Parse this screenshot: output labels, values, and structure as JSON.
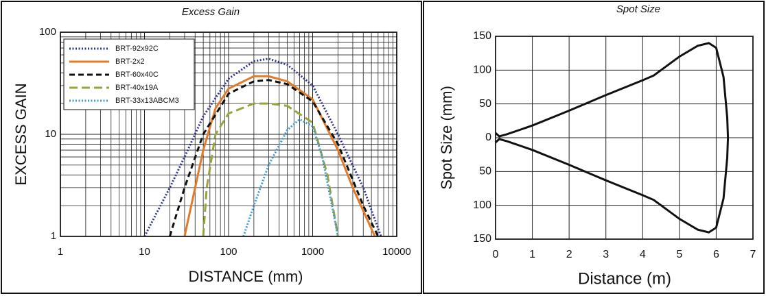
{
  "chart_data": [
    {
      "type": "line",
      "title": "Excess Gain",
      "x_label": "DISTANCE (mm)",
      "y_label": "EXCESS GAIN",
      "xlog": true,
      "ylog": true,
      "grid": true,
      "minor_grid": true,
      "legend": "upper-left",
      "xlim": [
        1,
        10000
      ],
      "xticks": [
        1,
        10,
        100,
        1000,
        10000
      ],
      "ylim": [
        1,
        100
      ],
      "yticks": [
        1,
        10,
        100
      ],
      "series": [
        {
          "name": "BRT-92x92C",
          "color": "#2e3192",
          "dash": "dotted",
          "x": [
            10,
            20,
            30,
            50,
            100,
            200,
            300,
            500,
            1000,
            2000,
            4000,
            6500
          ],
          "values": [
            1,
            3,
            6,
            15,
            35,
            52,
            55,
            48,
            30,
            10,
            3,
            1
          ]
        },
        {
          "name": "BRT-2x2",
          "color": "#e07b2a",
          "dash": "solid",
          "x": [
            30,
            40,
            50,
            70,
            100,
            200,
            300,
            500,
            1000,
            2000,
            3000,
            5500
          ],
          "values": [
            1,
            3,
            7,
            18,
            28,
            37,
            37,
            33,
            22,
            7,
            3,
            1
          ]
        },
        {
          "name": "BRT-60x40C",
          "color": "#111111",
          "dash": "dashed",
          "x": [
            20,
            30,
            50,
            100,
            200,
            300,
            500,
            1000,
            2000,
            4000,
            6000
          ],
          "values": [
            1,
            3,
            10,
            25,
            33,
            34,
            31,
            21,
            8,
            2,
            1
          ]
        },
        {
          "name": "BRT-40x19A",
          "color": "#9aa23a",
          "dash": "long-dashed",
          "x": [
            50,
            55,
            70,
            100,
            200,
            300,
            500,
            1000,
            1500,
            2000
          ],
          "values": [
            1,
            3,
            10,
            16,
            20,
            20,
            19,
            13,
            4,
            1
          ]
        },
        {
          "name": "BRT-33x13ABCM3",
          "color": "#3a9bd9",
          "dash": "dotted",
          "x": [
            150,
            200,
            300,
            500,
            700,
            1000,
            1300,
            1700,
            2000
          ],
          "values": [
            1,
            2,
            5,
            11,
            14,
            12,
            6,
            2,
            1
          ]
        }
      ]
    },
    {
      "type": "line",
      "title": "Spot Size",
      "x_label": "Distance (m)",
      "y_label": "Spot Size (mm)",
      "xlog": false,
      "ylog": false,
      "grid": true,
      "xlim": [
        0,
        7
      ],
      "xticks": [
        0,
        1,
        2,
        3,
        4,
        5,
        6,
        7
      ],
      "ylim": [
        -150,
        150
      ],
      "yticks": [
        {
          "value": -150,
          "label": "150"
        },
        {
          "value": -100,
          "label": "100"
        },
        {
          "value": -50,
          "label": "50"
        },
        0,
        50,
        100,
        150
      ],
      "series": [
        {
          "color": "#111111",
          "dash": "solid",
          "x": [
            0,
            0.1,
            0.3,
            1,
            2,
            3,
            4,
            4.3,
            5,
            5.5,
            5.8,
            6,
            6.2,
            6.3,
            6.32,
            6.3,
            6.2,
            6,
            5.8,
            5.5,
            5,
            4.3,
            4,
            3,
            2,
            1,
            0.3,
            0.1,
            0
          ],
          "values": [
            7,
            2,
            5,
            18,
            40,
            63,
            85,
            92,
            120,
            136,
            140,
            133,
            90,
            30,
            0,
            -30,
            -90,
            -133,
            -140,
            -136,
            -120,
            -92,
            -85,
            -63,
            -40,
            -18,
            -5,
            -2,
            -7
          ]
        }
      ]
    }
  ]
}
